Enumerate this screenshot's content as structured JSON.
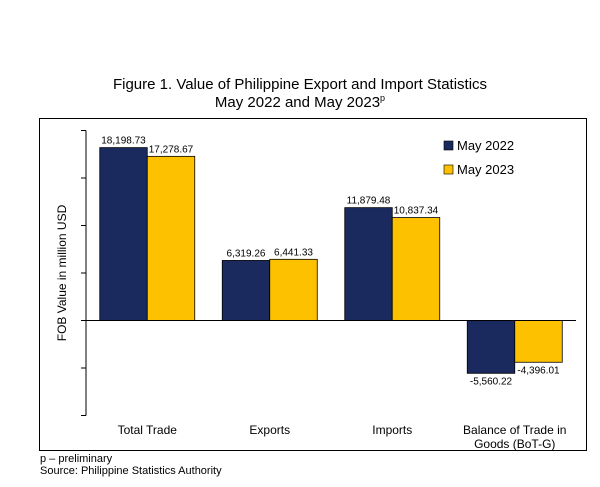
{
  "figure": {
    "title_line1": "Figure 1. Value of Philippine Export and Import Statistics",
    "title_line2": "May 2022 and May 2023",
    "title_sup": "p"
  },
  "chart_data": {
    "type": "bar",
    "title": "Figure 1. Value of Philippine Export and Import Statistics May 2022 and May 2023p",
    "xlabel": "",
    "ylabel": "FOB Value in million USD",
    "ylim": [
      -10000,
      20000
    ],
    "grid": false,
    "legend_position": "top-right",
    "categories": [
      "Total Trade",
      "Exports",
      "Imports",
      "Balance of Trade in Goods (BoT-G)"
    ],
    "category_lines": [
      [
        "Total Trade"
      ],
      [
        "Exports"
      ],
      [
        "Imports"
      ],
      [
        "Balance of Trade in",
        "Goods (BoT-G)"
      ]
    ],
    "series": [
      {
        "name": "May 2022",
        "color": "#1a2a5e",
        "values": [
          18198.73,
          6319.26,
          11879.48,
          -5560.22
        ],
        "labels": [
          "18,198.73",
          "6,319.26",
          "11,879.48",
          "-5,560.22"
        ]
      },
      {
        "name": "May 2023",
        "color": "#fdc100",
        "values": [
          17278.67,
          6441.33,
          10837.34,
          -4396.01
        ],
        "labels": [
          "17,278.67",
          "6,441.33",
          "10,837.34",
          "-4,396.01"
        ]
      }
    ]
  },
  "notes": {
    "line1": "p – preliminary",
    "line2": "Source:  Philippine Statistics Authority"
  }
}
